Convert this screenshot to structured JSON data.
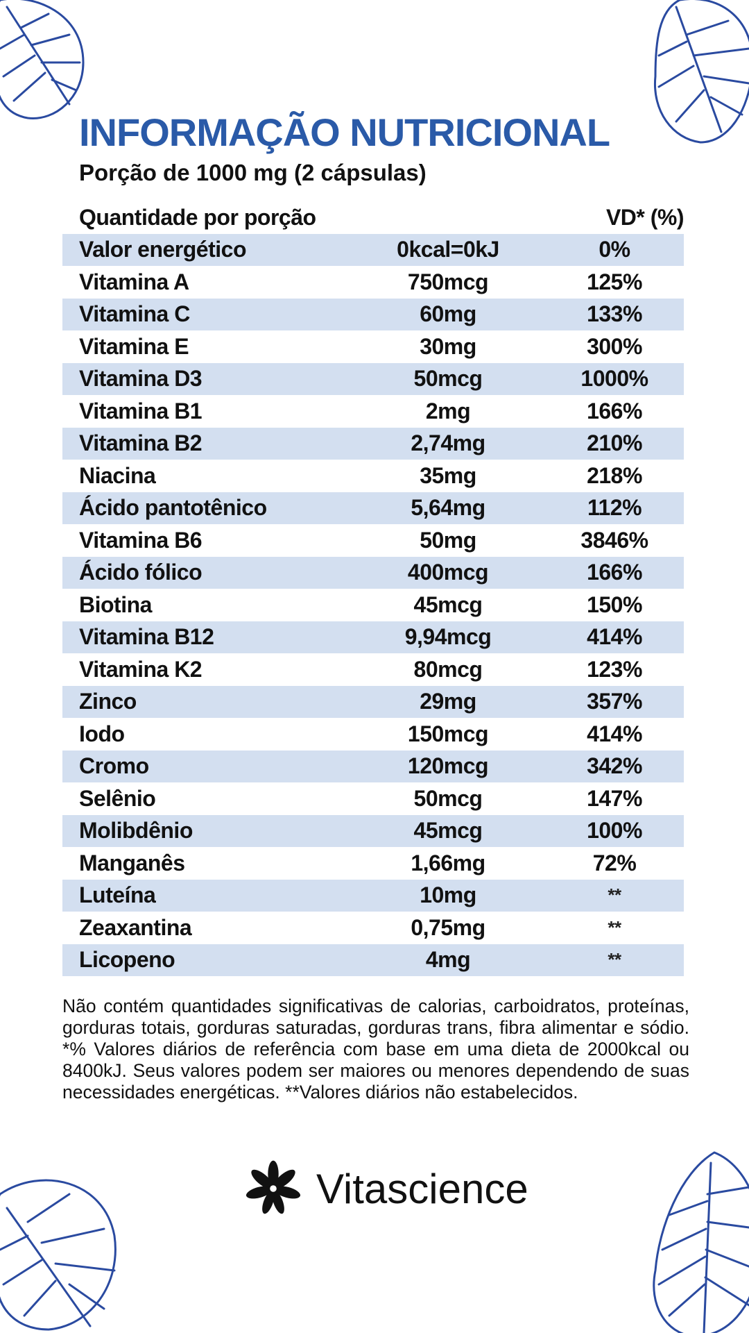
{
  "title": "INFORMAÇÃO NUTRICIONAL",
  "subtitle": "Porção de 1000 mg (2 cápsulas)",
  "header": {
    "label": "Quantidade por porção",
    "vd": "VD* (%)"
  },
  "rows": [
    {
      "name": "Valor energético",
      "amount": "0kcal=0kJ",
      "vd": "0%"
    },
    {
      "name": "Vitamina A",
      "amount": "750mcg",
      "vd": "125%"
    },
    {
      "name": "Vitamina C",
      "amount": "60mg",
      "vd": "133%"
    },
    {
      "name": "Vitamina E",
      "amount": "30mg",
      "vd": "300%"
    },
    {
      "name": "Vitamina D3",
      "amount": "50mcg",
      "vd": "1000%"
    },
    {
      "name": "Vitamina B1",
      "amount": "2mg",
      "vd": "166%"
    },
    {
      "name": "Vitamina B2",
      "amount": "2,74mg",
      "vd": "210%"
    },
    {
      "name": "Niacina",
      "amount": "35mg",
      "vd": "218%"
    },
    {
      "name": "Ácido pantotênico",
      "amount": "5,64mg",
      "vd": "112%"
    },
    {
      "name": "Vitamina B6",
      "amount": "50mg",
      "vd": "3846%"
    },
    {
      "name": "Ácido fólico",
      "amount": "400mcg",
      "vd": "166%"
    },
    {
      "name": "Biotina",
      "amount": "45mcg",
      "vd": "150%"
    },
    {
      "name": "Vitamina B12",
      "amount": "9,94mcg",
      "vd": "414%"
    },
    {
      "name": "Vitamina K2",
      "amount": "80mcg",
      "vd": "123%"
    },
    {
      "name": "Zinco",
      "amount": "29mg",
      "vd": "357%"
    },
    {
      "name": "Iodo",
      "amount": "150mcg",
      "vd": "414%"
    },
    {
      "name": "Cromo",
      "amount": "120mcg",
      "vd": "342%"
    },
    {
      "name": "Selênio",
      "amount": "50mcg",
      "vd": "147%"
    },
    {
      "name": "Molibdênio",
      "amount": "45mcg",
      "vd": "100%"
    },
    {
      "name": "Manganês",
      "amount": "1,66mg",
      "vd": "72%"
    },
    {
      "name": "Luteína",
      "amount": "10mg",
      "vd": "**"
    },
    {
      "name": "Zeaxantina",
      "amount": "0,75mg",
      "vd": "**"
    },
    {
      "name": "Licopeno",
      "amount": "4mg",
      "vd": "**"
    }
  ],
  "footnote": "Não contém quantidades significativas de calorias, carboidratos, proteínas, gorduras totais, gorduras saturadas, gorduras trans, fibra alimentar e sódio. *% Valores diários de referência com base em uma dieta de 2000kcal ou 8400kJ. Seus valores podem ser maiores ou menores dependendo de suas necessidades energéticas. **Valores diários não estabelecidos.",
  "brand": "Vitascience",
  "colors": {
    "title": "#2a5aa8",
    "row_shade": "#d3dff0",
    "leaf_outline": "#2a4aa0"
  }
}
